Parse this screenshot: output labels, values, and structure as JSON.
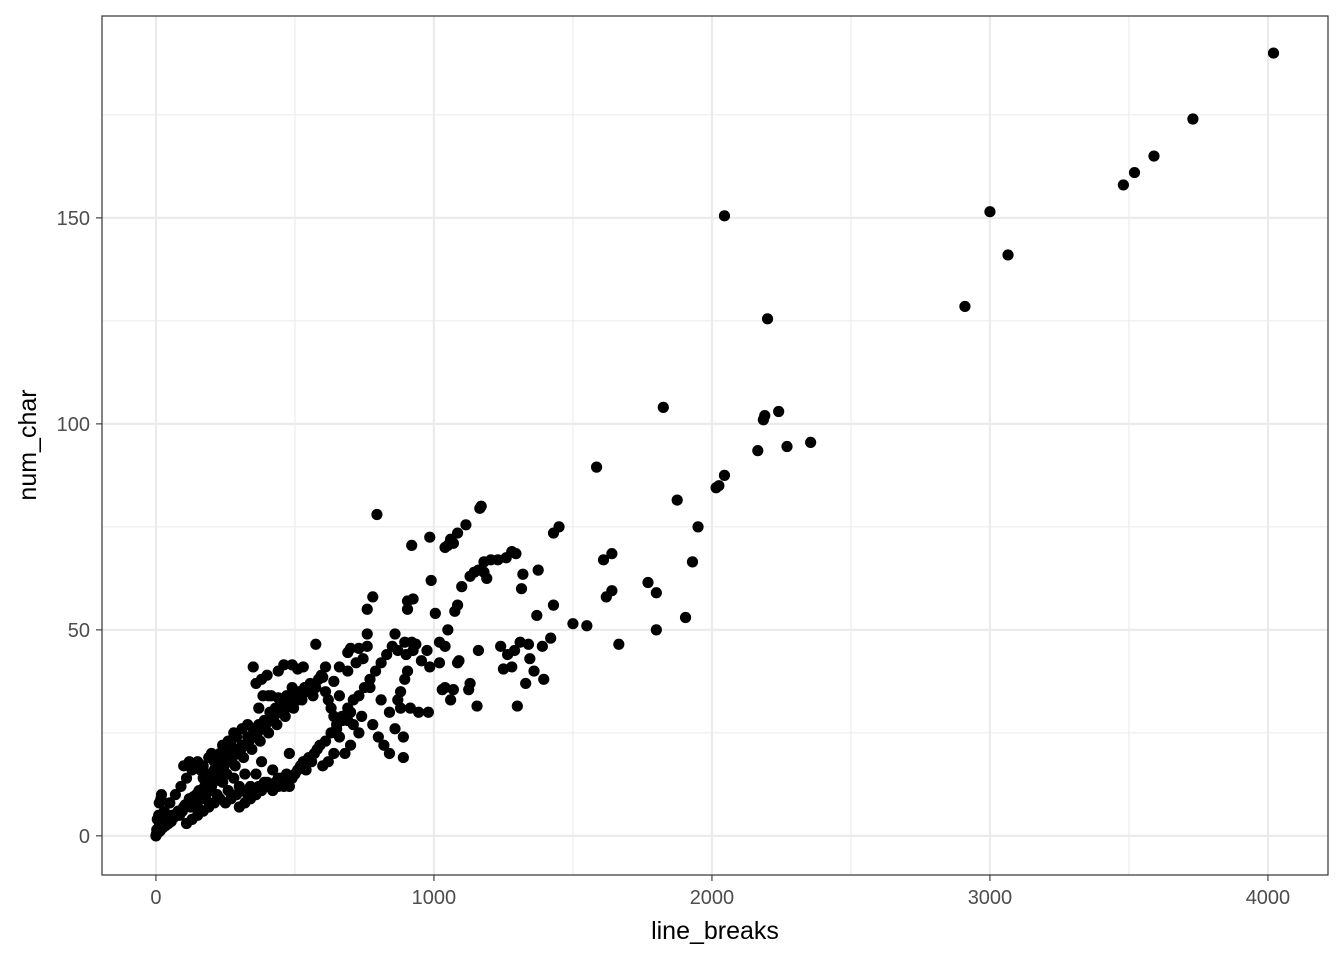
{
  "chart_data": {
    "type": "scatter",
    "title": "",
    "xlabel": "line_breaks",
    "ylabel": "num_char",
    "xlim": [
      -194,
      4216
    ],
    "ylim": [
      -9.5,
      199
    ],
    "x_ticks": [
      0,
      1000,
      2000,
      3000,
      4000
    ],
    "x_tick_labels": [
      "0",
      "1000",
      "2000",
      "3000",
      "4000"
    ],
    "y_ticks": [
      0,
      50,
      100,
      150
    ],
    "y_tick_labels": [
      "0",
      "50",
      "100",
      "150"
    ],
    "x_minor": [
      500,
      1500,
      2500,
      3500
    ],
    "y_minor": [
      25,
      75,
      125,
      175
    ],
    "grid": true,
    "legend": "none",
    "theme": "bw",
    "colors": {
      "point": "#000000",
      "grid": "#ebebeb",
      "panel_border": "#333333",
      "tick_text": "#4d4d4d"
    },
    "points": [
      [
        4020,
        190
      ],
      [
        3730,
        174
      ],
      [
        3590,
        165
      ],
      [
        3520,
        161
      ],
      [
        3480,
        158
      ],
      [
        3000,
        151.5
      ],
      [
        3065,
        141
      ],
      [
        2910,
        128.5
      ],
      [
        2045,
        150.5
      ],
      [
        2200,
        125.5
      ],
      [
        1825,
        104
      ],
      [
        2240,
        103
      ],
      [
        2190,
        102
      ],
      [
        2185,
        101
      ],
      [
        2165,
        93.5
      ],
      [
        2270,
        94.5
      ],
      [
        2355,
        95.5
      ],
      [
        2045,
        87.5
      ],
      [
        2025,
        85
      ],
      [
        2015,
        84.5
      ],
      [
        1585,
        89.5
      ],
      [
        1875,
        81.5
      ],
      [
        1950,
        75
      ],
      [
        1930,
        66.5
      ],
      [
        1610,
        67
      ],
      [
        1640,
        68.5
      ],
      [
        1640,
        59.5
      ],
      [
        1620,
        58
      ],
      [
        1770,
        61.5
      ],
      [
        1800,
        59
      ],
      [
        1800,
        50
      ],
      [
        1905,
        53
      ],
      [
        1665,
        46.5
      ],
      [
        1500,
        51.5
      ],
      [
        1550,
        51
      ],
      [
        1450,
        75
      ],
      [
        1430,
        73.5
      ],
      [
        1430,
        56
      ],
      [
        1375,
        64.5
      ],
      [
        1320,
        63.5
      ],
      [
        1315,
        60
      ],
      [
        1370,
        53.5
      ],
      [
        1310,
        47
      ],
      [
        1340,
        46.5
      ],
      [
        1390,
        46
      ],
      [
        1420,
        48
      ],
      [
        1345,
        43
      ],
      [
        1360,
        40
      ],
      [
        1395,
        38
      ],
      [
        1330,
        37
      ],
      [
        1300,
        31.5
      ],
      [
        1280,
        69
      ],
      [
        1295,
        68.5
      ],
      [
        1260,
        67.5
      ],
      [
        1230,
        67
      ],
      [
        1205,
        67
      ],
      [
        1180,
        66.5
      ],
      [
        1170,
        80
      ],
      [
        1165,
        79.5
      ],
      [
        1180,
        64
      ],
      [
        1190,
        62.5
      ],
      [
        1160,
        64.5
      ],
      [
        1145,
        64
      ],
      [
        1130,
        63
      ],
      [
        1240,
        46
      ],
      [
        1265,
        44
      ],
      [
        1250,
        40.5
      ],
      [
        1280,
        41
      ],
      [
        1290,
        45
      ],
      [
        1160,
        45
      ],
      [
        1100,
        60.5
      ],
      [
        1085,
        56
      ],
      [
        1075,
        54.5
      ],
      [
        1050,
        50
      ],
      [
        1040,
        46
      ],
      [
        1020,
        47
      ],
      [
        1020,
        42
      ],
      [
        1090,
        42.5
      ],
      [
        1085,
        42
      ],
      [
        1070,
        35.5
      ],
      [
        1125,
        35.5
      ],
      [
        1130,
        37
      ],
      [
        1060,
        33
      ],
      [
        1040,
        36
      ],
      [
        1030,
        35.5
      ],
      [
        1155,
        31.5
      ],
      [
        1115,
        75.5
      ],
      [
        1085,
        73.5
      ],
      [
        1060,
        72
      ],
      [
        1050,
        70.5
      ],
      [
        1040,
        70
      ],
      [
        1070,
        71
      ],
      [
        985,
        72.5
      ],
      [
        920,
        70.5
      ],
      [
        795,
        78
      ],
      [
        990,
        62
      ],
      [
        925,
        57.5
      ],
      [
        905,
        57
      ],
      [
        905,
        55
      ],
      [
        1005,
        54
      ],
      [
        860,
        49
      ],
      [
        895,
        47
      ],
      [
        920,
        47
      ],
      [
        925,
        45
      ],
      [
        935,
        46.5
      ],
      [
        975,
        45
      ],
      [
        955,
        42.5
      ],
      [
        985,
        41
      ],
      [
        900,
        44
      ],
      [
        905,
        40
      ],
      [
        895,
        38
      ],
      [
        880,
        35
      ],
      [
        870,
        33
      ],
      [
        880,
        31
      ],
      [
        915,
        31
      ],
      [
        945,
        30
      ],
      [
        980,
        30
      ],
      [
        890,
        24
      ],
      [
        890,
        19
      ],
      [
        780,
        58
      ],
      [
        760,
        55
      ],
      [
        760,
        49
      ],
      [
        760,
        46
      ],
      [
        730,
        45.5
      ],
      [
        700,
        45.5
      ],
      [
        690,
        44.5
      ],
      [
        745,
        43
      ],
      [
        720,
        42
      ],
      [
        690,
        40
      ],
      [
        660,
        41
      ],
      [
        610,
        41
      ],
      [
        575,
        46.5
      ],
      [
        530,
        41
      ],
      [
        510,
        40.5
      ],
      [
        490,
        41.5
      ],
      [
        460,
        41.5
      ],
      [
        440,
        40
      ],
      [
        350,
        41
      ],
      [
        380,
        38
      ],
      [
        360,
        37
      ],
      [
        405,
        34
      ],
      [
        385,
        34
      ],
      [
        370,
        31
      ],
      [
        330,
        27
      ],
      [
        400,
        39
      ],
      [
        415,
        34
      ],
      [
        440,
        33.5
      ],
      [
        460,
        30
      ],
      [
        510,
        33
      ],
      [
        560,
        36
      ],
      [
        600,
        38.5
      ],
      [
        640,
        37.5
      ],
      [
        660,
        34
      ],
      [
        700,
        30
      ],
      [
        740,
        29
      ],
      [
        780,
        27
      ],
      [
        800,
        24
      ],
      [
        820,
        22
      ],
      [
        840,
        20
      ],
      [
        860,
        26
      ],
      [
        840,
        30
      ],
      [
        810,
        33
      ],
      [
        770,
        36
      ],
      [
        730,
        25
      ],
      [
        700,
        22
      ],
      [
        680,
        20
      ],
      [
        660,
        24
      ],
      [
        640,
        20
      ],
      [
        620,
        18
      ],
      [
        600,
        17
      ],
      [
        580,
        21
      ],
      [
        560,
        18
      ],
      [
        540,
        16
      ],
      [
        520,
        17
      ],
      [
        500,
        15
      ],
      [
        480,
        20
      ],
      [
        460,
        12
      ],
      [
        440,
        14
      ],
      [
        420,
        16
      ],
      [
        400,
        13
      ],
      [
        380,
        18
      ],
      [
        360,
        15
      ],
      [
        340,
        12
      ],
      [
        320,
        15
      ],
      [
        300,
        12
      ],
      [
        280,
        14
      ],
      [
        260,
        11
      ],
      [
        240,
        13
      ],
      [
        220,
        10
      ],
      [
        200,
        12
      ],
      [
        180,
        9
      ],
      [
        160,
        10
      ],
      [
        140,
        8
      ],
      [
        120,
        9
      ],
      [
        100,
        7
      ],
      [
        80,
        6
      ],
      [
        60,
        5
      ],
      [
        40,
        4
      ],
      [
        20,
        3
      ],
      [
        10,
        2
      ],
      [
        5,
        1
      ],
      [
        2,
        0.5
      ],
      [
        0,
        0
      ],
      [
        3,
        1.5
      ],
      [
        8,
        0.8
      ],
      [
        15,
        1.2
      ],
      [
        25,
        2
      ],
      [
        35,
        2.5
      ],
      [
        45,
        3
      ],
      [
        55,
        3.5
      ],
      [
        65,
        4.5
      ],
      [
        75,
        5.5
      ],
      [
        85,
        5
      ],
      [
        95,
        6
      ],
      [
        105,
        7.5
      ],
      [
        115,
        8
      ],
      [
        125,
        7
      ],
      [
        135,
        9.5
      ],
      [
        145,
        10
      ],
      [
        155,
        11
      ],
      [
        165,
        9
      ],
      [
        175,
        12
      ],
      [
        185,
        13
      ],
      [
        195,
        11
      ],
      [
        205,
        14
      ],
      [
        215,
        15
      ],
      [
        225,
        13.5
      ],
      [
        235,
        16
      ],
      [
        245,
        17
      ],
      [
        255,
        15
      ],
      [
        265,
        18
      ],
      [
        275,
        19
      ],
      [
        285,
        17
      ],
      [
        295,
        20
      ],
      [
        305,
        21
      ],
      [
        315,
        19
      ],
      [
        325,
        22
      ],
      [
        335,
        23
      ],
      [
        345,
        21
      ],
      [
        355,
        24
      ],
      [
        365,
        25
      ],
      [
        375,
        23
      ],
      [
        385,
        26
      ],
      [
        395,
        27
      ],
      [
        405,
        25
      ],
      [
        415,
        28
      ],
      [
        425,
        29
      ],
      [
        435,
        27
      ],
      [
        445,
        30
      ],
      [
        455,
        31
      ],
      [
        465,
        29
      ],
      [
        475,
        32
      ],
      [
        485,
        33
      ],
      [
        495,
        31
      ],
      [
        505,
        34
      ],
      [
        515,
        35
      ],
      [
        525,
        33
      ],
      [
        535,
        36
      ],
      [
        545,
        35
      ],
      [
        555,
        37
      ],
      [
        565,
        34
      ],
      [
        575,
        36
      ],
      [
        585,
        38
      ],
      [
        595,
        39
      ],
      [
        610,
        35
      ],
      [
        620,
        33
      ],
      [
        630,
        31
      ],
      [
        640,
        29
      ],
      [
        650,
        27
      ],
      [
        670,
        29
      ],
      [
        690,
        28
      ],
      [
        710,
        27
      ],
      [
        10,
        5
      ],
      [
        12,
        8
      ],
      [
        18,
        9
      ],
      [
        20,
        10
      ],
      [
        5,
        4
      ],
      [
        30,
        6
      ],
      [
        50,
        8
      ],
      [
        70,
        10
      ],
      [
        90,
        12
      ],
      [
        110,
        14
      ],
      [
        130,
        16
      ],
      [
        150,
        18
      ],
      [
        170,
        17
      ],
      [
        190,
        19
      ],
      [
        210,
        18
      ],
      [
        230,
        20
      ],
      [
        250,
        21
      ],
      [
        270,
        22
      ],
      [
        290,
        24
      ],
      [
        310,
        26
      ],
      [
        150,
        5
      ],
      [
        170,
        6
      ],
      [
        190,
        7
      ],
      [
        210,
        8
      ],
      [
        230,
        9
      ],
      [
        250,
        8
      ],
      [
        270,
        9
      ],
      [
        290,
        10
      ],
      [
        310,
        11
      ],
      [
        330,
        10
      ],
      [
        350,
        11
      ],
      [
        370,
        12
      ],
      [
        390,
        13
      ],
      [
        410,
        12
      ],
      [
        430,
        13
      ],
      [
        450,
        14
      ],
      [
        470,
        15
      ],
      [
        490,
        14
      ],
      [
        510,
        16
      ],
      [
        530,
        18
      ],
      [
        550,
        19
      ],
      [
        570,
        20
      ],
      [
        590,
        22
      ],
      [
        610,
        23
      ],
      [
        630,
        25
      ],
      [
        650,
        26
      ],
      [
        670,
        28
      ],
      [
        690,
        31
      ],
      [
        710,
        33
      ],
      [
        730,
        34
      ],
      [
        750,
        36
      ],
      [
        770,
        38
      ],
      [
        790,
        40
      ],
      [
        810,
        42
      ],
      [
        830,
        44
      ],
      [
        850,
        46
      ],
      [
        870,
        45
      ],
      [
        300,
        7
      ],
      [
        320,
        8
      ],
      [
        340,
        9
      ],
      [
        360,
        10
      ],
      [
        380,
        11
      ],
      [
        400,
        12
      ],
      [
        420,
        11
      ],
      [
        440,
        12
      ],
      [
        460,
        13
      ],
      [
        480,
        12
      ],
      [
        110,
        3
      ],
      [
        130,
        4
      ],
      [
        150,
        7
      ],
      [
        170,
        14
      ],
      [
        190,
        15
      ],
      [
        210,
        16
      ],
      [
        230,
        17
      ],
      [
        250,
        19
      ],
      [
        270,
        20
      ],
      [
        290,
        21
      ],
      [
        310,
        22
      ],
      [
        330,
        24
      ],
      [
        350,
        26
      ],
      [
        370,
        27
      ],
      [
        390,
        28
      ],
      [
        410,
        30
      ],
      [
        430,
        31
      ],
      [
        450,
        32
      ],
      [
        470,
        34
      ],
      [
        490,
        36
      ],
      [
        100,
        17
      ],
      [
        120,
        18
      ],
      [
        140,
        17.5
      ],
      [
        160,
        16
      ],
      [
        180,
        15
      ],
      [
        200,
        20
      ],
      [
        220,
        19
      ],
      [
        240,
        22
      ],
      [
        260,
        23
      ],
      [
        280,
        25
      ]
    ]
  }
}
